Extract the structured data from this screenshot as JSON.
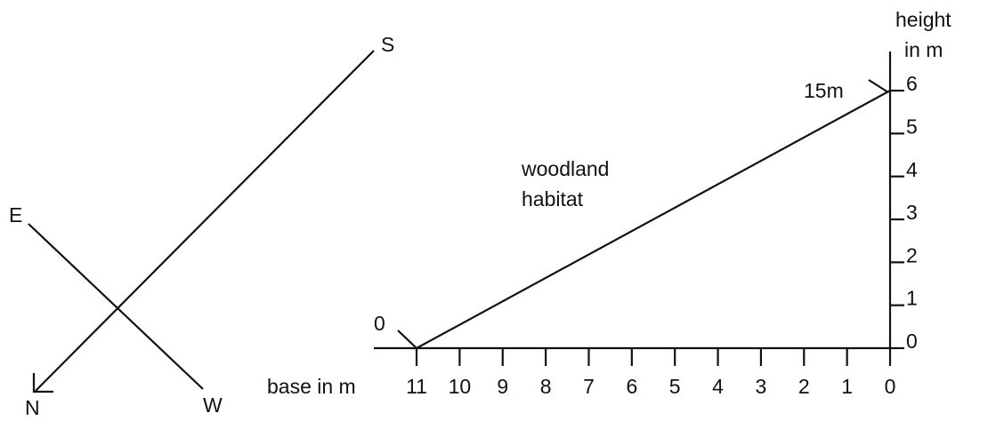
{
  "compass": {
    "labels": [
      "S",
      "E",
      "N",
      "W"
    ]
  },
  "habitat": {
    "lines": [
      "woodland",
      "habitat"
    ]
  },
  "base_axis": {
    "label": "base in m",
    "ticks": [
      11,
      10,
      9,
      8,
      7,
      6,
      5,
      4,
      3,
      2,
      1,
      0
    ]
  },
  "height_axis": {
    "label": [
      "height",
      "in m"
    ],
    "ticks": [
      0,
      1,
      2,
      3,
      4,
      5,
      6
    ]
  },
  "annotations": {
    "start": "0",
    "top": "15m"
  }
}
